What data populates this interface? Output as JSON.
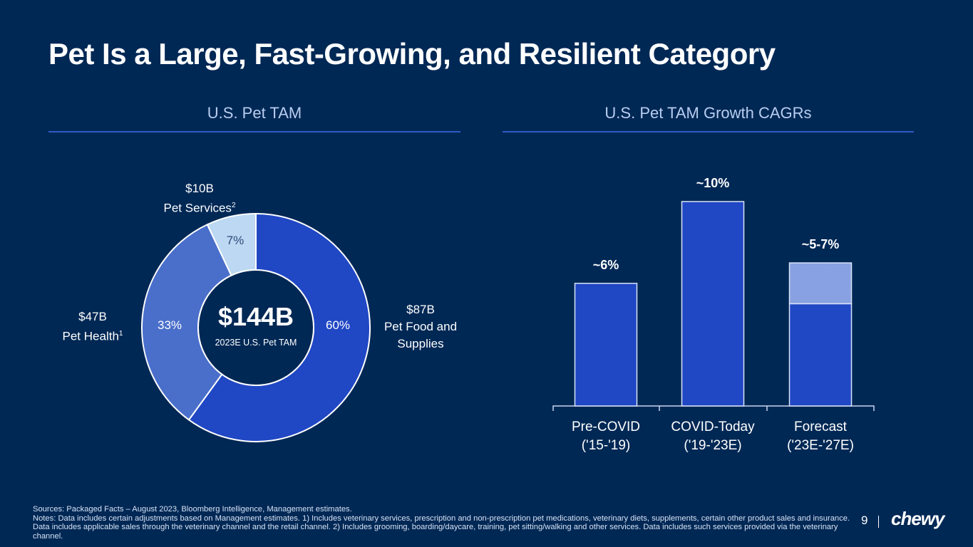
{
  "title": "Pet Is a Large, Fast-Growing, and Resilient Category",
  "left_section": {
    "heading": "U.S. Pet TAM"
  },
  "right_section": {
    "heading": "U.S. Pet TAM Growth CAGRs"
  },
  "colors": {
    "background": "#002855",
    "food": "#2047c4",
    "health": "#4a6fcb",
    "services": "#bcd8f2",
    "bar": "#2047c4",
    "bar_range": "#8aa3e3",
    "rule": "#2f5bc7"
  },
  "chart_data": [
    {
      "type": "pie",
      "title": "U.S. Pet TAM",
      "center_value": "$144B",
      "center_label": "2023E U.S. Pet TAM",
      "slices": [
        {
          "name": "Pet Food and Supplies",
          "value_label": "$87B",
          "line1": "$87B",
          "line2": "Pet Food and",
          "line3": "Supplies",
          "percent": 60,
          "percent_label": "60%",
          "footnote": ""
        },
        {
          "name": "Pet Health",
          "value_label": "$47B",
          "line1": "$47B",
          "line2": "Pet Health",
          "percent": 33,
          "percent_label": "33%",
          "footnote": "1"
        },
        {
          "name": "Pet Services",
          "value_label": "$10B",
          "line1": "$10B",
          "line2": "Pet Services",
          "percent": 7,
          "percent_label": "7%",
          "footnote": "2"
        }
      ]
    },
    {
      "type": "bar",
      "title": "U.S. Pet TAM Growth CAGRs",
      "categories": [
        "Pre-COVID ('15-'19)",
        "COVID-Today ('19-'23E)",
        "Forecast ('23E-'27E)"
      ],
      "category_lines": [
        [
          "Pre-COVID",
          "('15-'19)"
        ],
        [
          "COVID-Today",
          "('19-'23E)"
        ],
        [
          "Forecast",
          "('23E-'27E)"
        ]
      ],
      "values": [
        6,
        10,
        5
      ],
      "range_upper": [
        null,
        null,
        7
      ],
      "data_labels": [
        "~6%",
        "~10%",
        "~5-7%"
      ],
      "ylabel": "",
      "ylim": [
        0,
        10.5
      ]
    }
  ],
  "footnotes": {
    "sources": "Sources: Packaged Facts – August 2023, Bloomberg Intelligence, Management estimates.",
    "notes": "Notes: Data includes certain adjustments based on Management estimates. 1) Includes veterinary services, prescription and non-prescription pet medications, veterinary diets, supplements, certain other product sales and insurance. Data includes applicable sales through the veterinary channel and the retail channel. 2) Includes grooming, boarding/daycare, training, pet sitting/walking and other services. Data includes such services provided via the veterinary channel."
  },
  "page_number": "9",
  "logo": "chewy"
}
